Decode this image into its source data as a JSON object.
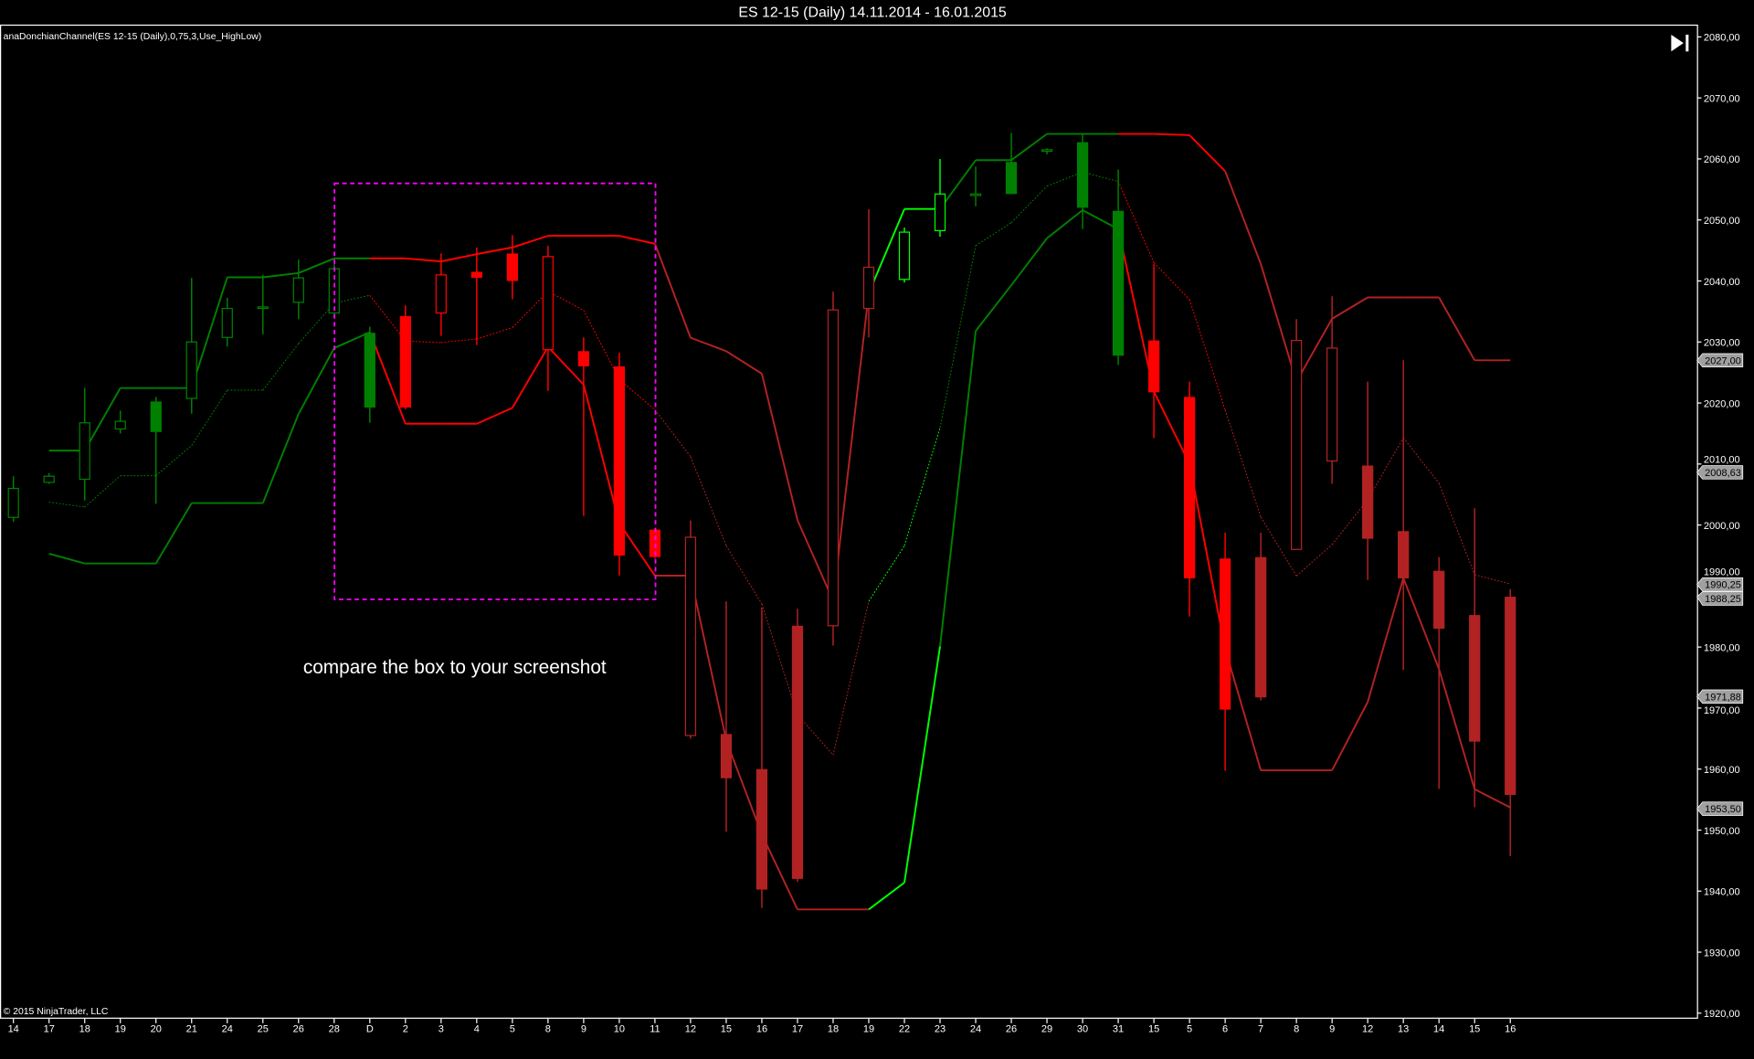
{
  "window": {
    "title": "ES 12-15 (Daily)  14.11.2014 - 16.01.2015",
    "indicator_label": "anaDonchianChannel(ES 12-15 (Daily),0,75,3,Use_HighLow)",
    "copyright": "© 2015 NinjaTrader, LLC",
    "annotation": "compare the box to your screenshot",
    "scroll_end_icon": "skip-to-end-icon"
  },
  "colors": {
    "background": "#000000",
    "up_trend": "#008000",
    "up_strong": "#00ff00",
    "down_trend": "#ff0000",
    "down_weak": "#b22222",
    "annotation_box": "#ff00ff",
    "price_marker": "#a0a0a0"
  },
  "price_markers": [
    {
      "value": 2027.0,
      "label": "2027,00"
    },
    {
      "value": 2008.63,
      "label": "2008,63"
    },
    {
      "value": 1990.25,
      "label": "1990,25"
    },
    {
      "value": 1988.25,
      "label": "1988,25"
    },
    {
      "value": 1971.88,
      "label": "1971,88"
    },
    {
      "value": 1953.5,
      "label": "1953,50"
    }
  ],
  "chart_data": {
    "type": "candlestick",
    "title": "ES 12-15 (Daily)  14.11.2014 - 16.01.2015",
    "ylim": [
      1920,
      2080
    ],
    "y_ticks": [
      1920,
      1930,
      1940,
      1950,
      1960,
      1970,
      1980,
      1990,
      2000,
      2010,
      2020,
      2030,
      2040,
      2050,
      2060,
      2070,
      2080
    ],
    "y_tick_labels": [
      "1920,00",
      "1930,00",
      "1940,00",
      "1950,00",
      "1960,00",
      "1970,00",
      "1980,00",
      "1990,00",
      "2000,00",
      "2010,00",
      "2020,00",
      "2030,00",
      "2040,00",
      "2050,00",
      "2060,00",
      "2070,00",
      "2080,00"
    ],
    "grid": false,
    "categories": [
      "14",
      "17",
      "18",
      "19",
      "20",
      "21",
      "24",
      "25",
      "26",
      "28",
      "D",
      "2",
      "3",
      "4",
      "5",
      "8",
      "9",
      "10",
      "11",
      "12",
      "15",
      "16",
      "17",
      "18",
      "19",
      "22",
      "23",
      "24",
      "26",
      "29",
      "30",
      "31",
      "15",
      "5",
      "6",
      "7",
      "8",
      "9",
      "12",
      "13",
      "14",
      "15",
      "16"
    ],
    "ohlc": [
      [
        2001.25,
        2008,
        2000.5,
        2006
      ],
      [
        2007,
        2008.5,
        2006.75,
        2008
      ],
      [
        2007.5,
        2022.5,
        2004,
        2016.75
      ],
      [
        2015.75,
        2018.75,
        2015,
        2017
      ],
      [
        2020.25,
        2021,
        2003.5,
        2015.25
      ],
      [
        2020.75,
        2040.5,
        2018.25,
        2030
      ],
      [
        2030.75,
        2037.25,
        2029.25,
        2035.5
      ],
      [
        2035.5,
        2041,
        2031.25,
        2035.75
      ],
      [
        2036.5,
        2043.5,
        2033.75,
        2040.5
      ],
      [
        2034.75,
        2042.75,
        2034,
        2042
      ],
      [
        2031.5,
        2032.5,
        2016.75,
        2019.25
      ],
      [
        2034.25,
        2036,
        2019,
        2019.25
      ],
      [
        2034.75,
        2044.5,
        2031,
        2041
      ],
      [
        2041.5,
        2045.5,
        2029.5,
        2040.5
      ],
      [
        2044.5,
        2047.5,
        2037,
        2040
      ],
      [
        2028.75,
        2045.75,
        2022,
        2044
      ],
      [
        2028.5,
        2030.75,
        2001.5,
        2026
      ],
      [
        2026,
        2028.25,
        1991.75,
        1995
      ],
      [
        1999.25,
        1999.5,
        1994.5,
        1994.75
      ],
      [
        1965.5,
        2000.75,
        1965,
        1998
      ],
      [
        1965.75,
        1987.5,
        1949.75,
        1958.5
      ],
      [
        1960,
        1986.5,
        1937.25,
        1940.25
      ],
      [
        1983.5,
        1986.25,
        1941.5,
        1942
      ],
      [
        1983.5,
        2038.25,
        1980.25,
        2035.25
      ],
      [
        2035.5,
        2051.75,
        2030.75,
        2042.25
      ],
      [
        2040.25,
        2048.75,
        2039.75,
        2048
      ],
      [
        2048.25,
        2060,
        2047.25,
        2054.25
      ],
      [
        2054,
        2058.75,
        2052.25,
        2054.25
      ],
      [
        2059.5,
        2064.25,
        2054.25,
        2054.25
      ],
      [
        2061.25,
        2061.75,
        2060.75,
        2061.5
      ],
      [
        2062.75,
        2064,
        2048.5,
        2052
      ],
      [
        2051.5,
        2058.25,
        2026.25,
        2027.75
      ],
      [
        2030.25,
        2042.75,
        2014.25,
        2021.75
      ],
      [
        2021,
        2023.5,
        1985,
        1991.25
      ],
      [
        1994.5,
        1998.75,
        1959.75,
        1969.75
      ],
      [
        1994.75,
        1998.75,
        1971.25,
        1971.75
      ],
      [
        1996,
        2033.75,
        1996,
        2030.25
      ],
      [
        2010.5,
        2037.5,
        2006.75,
        2029
      ],
      [
        2009.75,
        2023.5,
        1991,
        1997.75
      ],
      [
        1999,
        2027,
        1976.25,
        1991.25
      ],
      [
        1992.5,
        1994.75,
        1956.75,
        1983
      ],
      [
        1985.25,
        2002.75,
        1953.75,
        1964.5
      ],
      [
        1988.25,
        1989.5,
        1945.75,
        1955.75
      ]
    ],
    "bar_trend": [
      "up",
      "up",
      "up",
      "up",
      "up",
      "up",
      "up",
      "up",
      "up",
      "up",
      "up",
      "down",
      "down",
      "down",
      "down",
      "down",
      "down",
      "down",
      "down",
      "down_weak",
      "down_weak",
      "down_weak",
      "down_weak",
      "down_weak",
      "down_weak",
      "up_strong",
      "up_strong",
      "up",
      "up",
      "up",
      "up",
      "up",
      "down",
      "down",
      "down",
      "down_weak",
      "down_weak",
      "down_weak",
      "down_weak",
      "down_weak",
      "down_weak",
      "down_weak",
      "down_weak"
    ],
    "series": [
      {
        "key": "upper",
        "style": "solid",
        "values": [
          null,
          2012.2,
          2012.2,
          2022.45,
          2022.45,
          2022.45,
          2040.6,
          2040.6,
          2041.3,
          2043.7,
          2043.7,
          2043.7,
          2043.2,
          2044.4,
          2045.5,
          2047.4,
          2047.4,
          2047.4,
          2046.1,
          2030.7,
          2028.5,
          2024.8,
          2000.8,
          1987.6,
          2038,
          2051.8,
          2051.8,
          2059.8,
          2059.8,
          2064.1,
          2064.1,
          2064.1,
          2064.1,
          2063.9,
          2058,
          2042.8,
          2023.5,
          2033.8,
          2037.3,
          2037.3,
          2037.3,
          2027,
          2027
        ]
      },
      {
        "key": "lower",
        "style": "solid",
        "values": [
          null,
          1995.3,
          1993.7,
          1993.7,
          1993.7,
          2003.6,
          2003.6,
          2003.6,
          2018.2,
          2029,
          2031.6,
          2016.6,
          2016.6,
          2016.6,
          2019.2,
          2029.2,
          2023,
          2000.3,
          1991.7,
          1991.7,
          1964.7,
          1949.3,
          1937,
          1937,
          1937,
          1941.4,
          1980.1,
          2031.8,
          2039.3,
          2047,
          2051.6,
          2048.5,
          2021.9,
          2010,
          1979.7,
          1959.8,
          1959.8,
          1959.8,
          1971,
          1991.3,
          1976.4,
          1956.7,
          1953.7
        ]
      },
      {
        "key": "middle",
        "style": "dotted",
        "values": [
          null,
          2003.75,
          2002.95,
          2008.08,
          2008.08,
          2013.03,
          2022.1,
          2022.1,
          2029.75,
          2036.35,
          2037.65,
          2030.15,
          2029.9,
          2030.5,
          2032.35,
          2038.3,
          2035.2,
          2023.85,
          2018.9,
          2011.2,
          1996.6,
          1987.05,
          1968.9,
          1962.3,
          1987.5,
          1996.6,
          2015.95,
          2045.8,
          2049.55,
          2055.55,
          2057.85,
          2056.3,
          2043,
          2036.95,
          2018.85,
          2001.3,
          1991.65,
          1996.8,
          2004.15,
          2014.3,
          2006.85,
          1991.85,
          1990.35
        ]
      }
    ]
  }
}
